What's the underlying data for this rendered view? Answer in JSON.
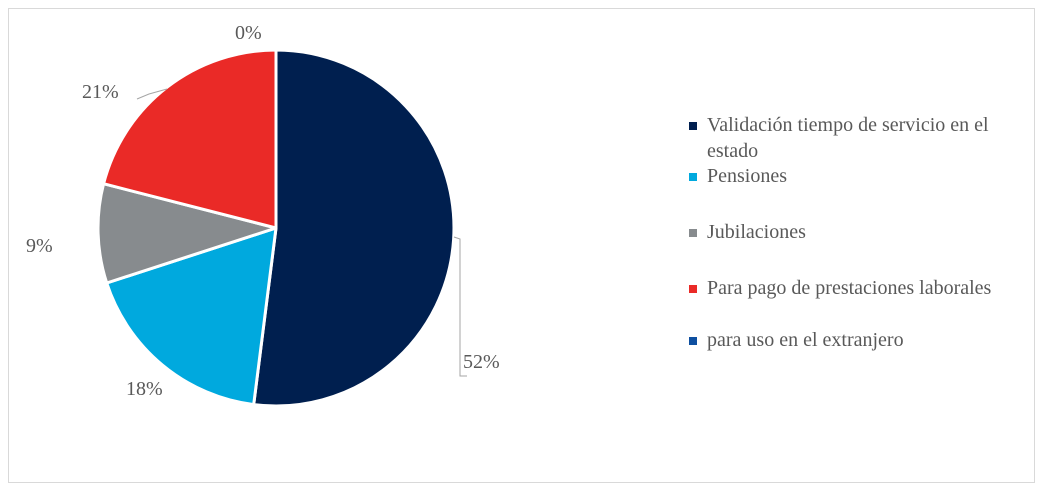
{
  "chart_data": {
    "type": "pie",
    "title": "",
    "slices": [
      {
        "label": "Validación tiempo de servicio en el estado",
        "value": 52,
        "value_label": "52%",
        "color": "#001f4f"
      },
      {
        "label": "Pensiones",
        "value": 18,
        "value_label": "18%",
        "color": "#00a9de"
      },
      {
        "label": "Jubilaciones",
        "value": 9,
        "value_label": "9%",
        "color": "#878b8e"
      },
      {
        "label": "Para pago de prestaciones laborales",
        "value": 21,
        "value_label": "21%",
        "color": "#ea2a27"
      },
      {
        "label": "para uso en el extranjero",
        "value": 0,
        "value_label": "0%",
        "color": "#0e4fa0"
      }
    ],
    "legend_position": "right",
    "data_labels": "outside with leader lines"
  }
}
